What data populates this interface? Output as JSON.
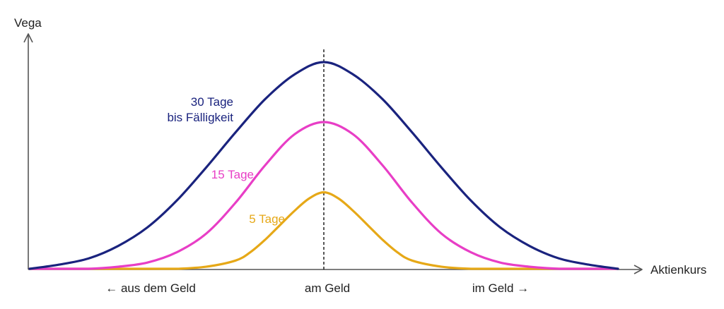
{
  "chart_data": {
    "type": "line",
    "ylabel": "Vega",
    "xlabel": "Aktienkurs",
    "x_range": [
      -1,
      1
    ],
    "ylim": [
      0,
      1
    ],
    "annotations": {
      "center_label": "am Geld",
      "left_label": "← aus dem Geld",
      "right_label": "im Geld →"
    },
    "reference_line": {
      "x": 0,
      "style": "dashed"
    },
    "series": [
      {
        "name": "30 Tage bis Fälligkeit",
        "label_lines": [
          "30 Tage",
          "bis Fälligkeit"
        ],
        "color": "#1a237e",
        "x": [
          -1,
          -0.9,
          -0.8,
          -0.7,
          -0.6,
          -0.5,
          -0.4,
          -0.3,
          -0.2,
          -0.1,
          0,
          0.1,
          0.2,
          0.3,
          0.4,
          0.5,
          0.6,
          0.7,
          0.8,
          0.9,
          1
        ],
        "values": [
          0.0,
          0.02,
          0.05,
          0.11,
          0.2,
          0.33,
          0.49,
          0.66,
          0.82,
          0.94,
          1.0,
          0.94,
          0.82,
          0.66,
          0.49,
          0.33,
          0.2,
          0.11,
          0.05,
          0.02,
          0.0
        ]
      },
      {
        "name": "15 Tage",
        "label_lines": [
          "15 Tage"
        ],
        "color": "#e83ec6",
        "x": [
          -1,
          -0.9,
          -0.8,
          -0.7,
          -0.6,
          -0.5,
          -0.4,
          -0.3,
          -0.2,
          -0.1,
          0,
          0.1,
          0.2,
          0.3,
          0.4,
          0.5,
          0.6,
          0.7,
          0.8,
          0.9,
          1
        ],
        "values": [
          0.0,
          0.0,
          0.0,
          0.01,
          0.03,
          0.08,
          0.17,
          0.32,
          0.5,
          0.65,
          0.71,
          0.65,
          0.5,
          0.32,
          0.17,
          0.08,
          0.03,
          0.01,
          0.0,
          0.0,
          0.0
        ]
      },
      {
        "name": "5 Tage",
        "label_lines": [
          "5 Tage"
        ],
        "color": "#e6a817",
        "x": [
          -1,
          -0.6,
          -0.5,
          -0.4,
          -0.3,
          -0.25,
          -0.2,
          -0.15,
          -0.1,
          -0.05,
          0,
          0.05,
          0.1,
          0.15,
          0.2,
          0.25,
          0.3,
          0.4,
          0.5,
          0.6,
          1
        ],
        "values": [
          0.0,
          0.0,
          0.0,
          0.01,
          0.04,
          0.08,
          0.14,
          0.21,
          0.28,
          0.34,
          0.37,
          0.34,
          0.28,
          0.21,
          0.14,
          0.08,
          0.04,
          0.01,
          0.0,
          0.0,
          0.0
        ]
      }
    ]
  }
}
